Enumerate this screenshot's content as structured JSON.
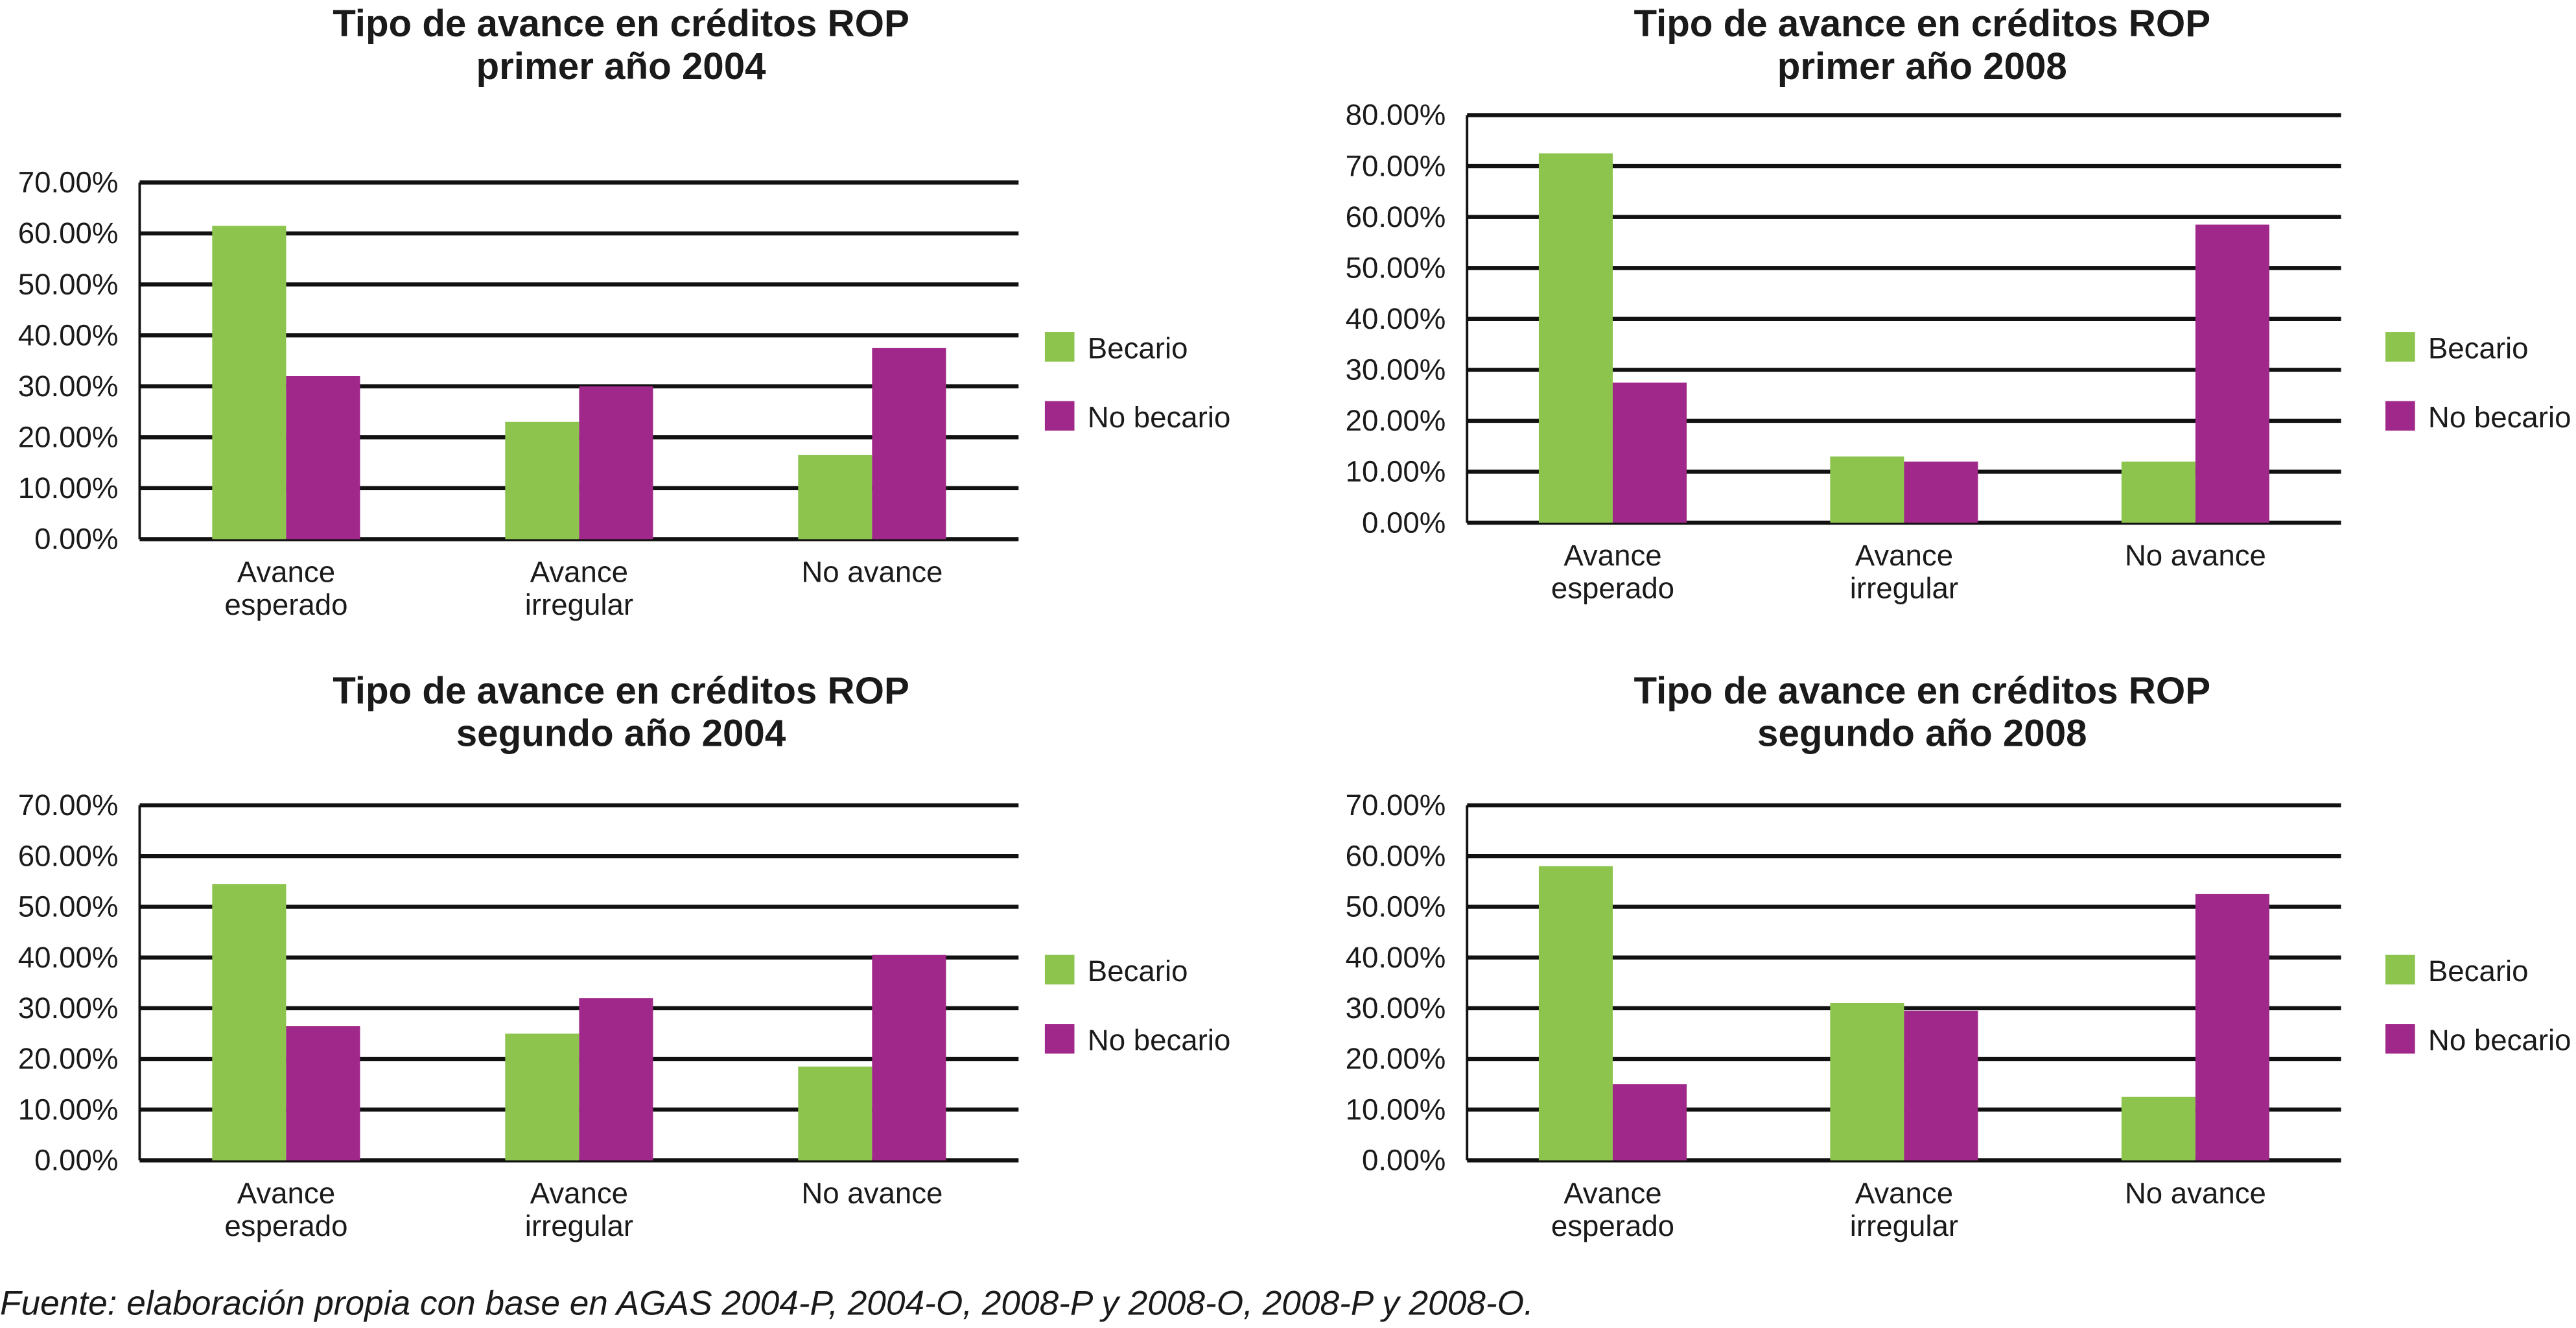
{
  "chart_data": [
    {
      "type": "bar",
      "title": [
        "Tipo de avance en créditos ROP",
        "primer año 2004"
      ],
      "categories": [
        [
          "Avance",
          "esperado"
        ],
        [
          "Avance",
          "irregular"
        ],
        [
          "No avance"
        ]
      ],
      "series": [
        {
          "name": "Becario",
          "color": "#8dc44e",
          "values": [
            61.5,
            23,
            16.5
          ]
        },
        {
          "name": "No becario",
          "color": "#a0288a",
          "values": [
            32,
            30,
            37.5
          ]
        }
      ],
      "ylim": [
        0,
        70
      ],
      "yticks": [
        {
          "value": 0,
          "label": "0.00%"
        },
        {
          "value": 10,
          "label": "10.00%"
        },
        {
          "value": 20,
          "label": "20.00%"
        },
        {
          "value": 30,
          "label": "30.00%"
        },
        {
          "value": 40,
          "label": "40.00%"
        },
        {
          "value": 50,
          "label": "50.00%"
        },
        {
          "value": 60,
          "label": "60.00%"
        },
        {
          "value": 70,
          "label": "70.00%"
        }
      ],
      "grid": true,
      "legend": "right"
    },
    {
      "type": "bar",
      "title": [
        "Tipo de avance en créditos ROP",
        "primer año 2008"
      ],
      "categories": [
        [
          "Avance",
          "esperado"
        ],
        [
          "Avance",
          "irregular"
        ],
        [
          "No avance"
        ]
      ],
      "series": [
        {
          "name": "Becario",
          "color": "#8dc44e",
          "values": [
            72.5,
            13,
            12
          ]
        },
        {
          "name": "No becario",
          "color": "#a0288a",
          "values": [
            27.5,
            12,
            58.5
          ]
        }
      ],
      "ylim": [
        0,
        80
      ],
      "yticks": [
        {
          "value": 0,
          "label": "0.00%"
        },
        {
          "value": 10,
          "label": "10.00%"
        },
        {
          "value": 20,
          "label": "20.00%"
        },
        {
          "value": 30,
          "label": "30.00%"
        },
        {
          "value": 40,
          "label": "40.00%"
        },
        {
          "value": 50,
          "label": "50.00%"
        },
        {
          "value": 60,
          "label": "60.00%"
        },
        {
          "value": 70,
          "label": "70.00%"
        },
        {
          "value": 80,
          "label": "80.00%"
        }
      ],
      "grid": true,
      "legend": "right"
    },
    {
      "type": "bar",
      "title": [
        "Tipo de avance en créditos ROP",
        "segundo año 2004"
      ],
      "categories": [
        [
          "Avance",
          "esperado"
        ],
        [
          "Avance",
          "irregular"
        ],
        [
          "No avance"
        ]
      ],
      "series": [
        {
          "name": "Becario",
          "color": "#8dc44e",
          "values": [
            54.5,
            25,
            18.5
          ]
        },
        {
          "name": "No becario",
          "color": "#a0288a",
          "values": [
            26.5,
            32,
            40.5
          ]
        }
      ],
      "ylim": [
        0,
        70
      ],
      "yticks": [
        {
          "value": 0,
          "label": "0.00%"
        },
        {
          "value": 10,
          "label": "10.00%"
        },
        {
          "value": 20,
          "label": "20.00%"
        },
        {
          "value": 30,
          "label": "30.00%"
        },
        {
          "value": 40,
          "label": "40.00%"
        },
        {
          "value": 50,
          "label": "50.00%"
        },
        {
          "value": 60,
          "label": "60.00%"
        },
        {
          "value": 70,
          "label": "70.00%"
        }
      ],
      "grid": true,
      "legend": "right"
    },
    {
      "type": "bar",
      "title": [
        "Tipo de avance en créditos ROP",
        "segundo año 2008"
      ],
      "categories": [
        [
          "Avance",
          "esperado"
        ],
        [
          "Avance",
          "irregular"
        ],
        [
          "No avance"
        ]
      ],
      "series": [
        {
          "name": "Becario",
          "color": "#8dc44e",
          "values": [
            58,
            31,
            12.5
          ]
        },
        {
          "name": "No becario",
          "color": "#a0288a",
          "values": [
            15,
            29.5,
            52.5
          ]
        }
      ],
      "ylim": [
        0,
        70
      ],
      "yticks": [
        {
          "value": 0,
          "label": "0.00%"
        },
        {
          "value": 10,
          "label": "10.00%"
        },
        {
          "value": 20,
          "label": "20.00%"
        },
        {
          "value": 30,
          "label": "30.00%"
        },
        {
          "value": 40,
          "label": "40.00%"
        },
        {
          "value": 50,
          "label": "50.00%"
        },
        {
          "value": 60,
          "label": "60.00%"
        },
        {
          "value": 70,
          "label": "70.00%"
        }
      ],
      "grid": true,
      "legend": "right"
    }
  ],
  "source": "Fuente: elaboración propia con base en AGAS 2004-P, 2004-O, 2008-P y 2008-O, 2008-P y 2008-O."
}
